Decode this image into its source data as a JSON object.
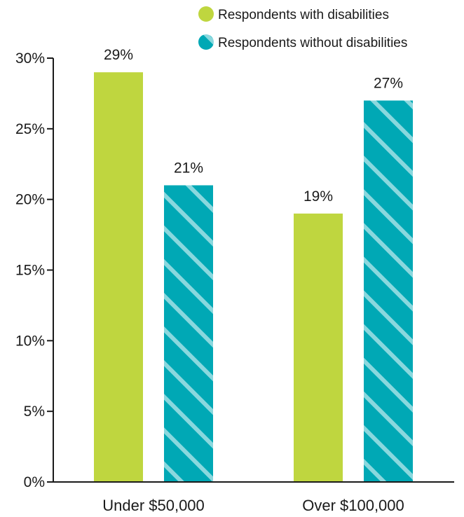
{
  "chart_data": {
    "type": "bar",
    "categories": [
      "Under $50,000",
      "Over $100,000"
    ],
    "series": [
      {
        "name": "Respondents with disabilities",
        "values": [
          29,
          19
        ],
        "color": "#bfd63f",
        "pattern": "solid"
      },
      {
        "name": "Respondents without disabilities",
        "values": [
          21,
          27
        ],
        "color": "#00a8b5",
        "pattern": "diagonal-stripes"
      }
    ],
    "data_labels": [
      [
        "29%",
        "19%"
      ],
      [
        "21%",
        "27%"
      ]
    ],
    "yticks": [
      0,
      5,
      10,
      15,
      20,
      25,
      30
    ],
    "ytick_labels": [
      "0%",
      "5%",
      "10%",
      "15%",
      "20%",
      "25%",
      "30%"
    ],
    "ylim": [
      0,
      30
    ],
    "title": "",
    "xlabel": "",
    "ylabel": "",
    "grid": false,
    "legend_position": "top-right"
  }
}
